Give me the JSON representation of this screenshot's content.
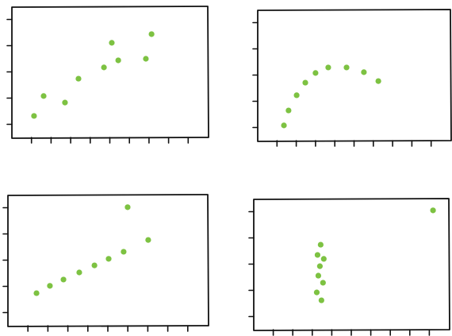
{
  "chart_data": [
    {
      "type": "scatter",
      "color": "#7dc242",
      "x": [
        1.13,
        1.62,
        2.71,
        3.4,
        4.7,
        5.1,
        5.43,
        6.84,
        7.13
      ],
      "values": [
        0.82,
        1.58,
        1.33,
        2.24,
        2.67,
        3.61,
        2.94,
        3.0,
        3.94
      ],
      "xlim": [
        0,
        10
      ],
      "ylim": [
        0,
        5
      ],
      "xticks": [
        1,
        2,
        3,
        4,
        5,
        6,
        7,
        8,
        9
      ],
      "yticks": [
        0.5,
        1.5,
        2.5,
        3.5,
        4.5
      ]
    },
    {
      "type": "scatter",
      "color": "#7dc242",
      "x": [
        1.36,
        1.6,
        2.02,
        2.47,
        3.0,
        3.66,
        4.61,
        5.51,
        6.26
      ],
      "values": [
        0.58,
        1.15,
        1.73,
        2.21,
        2.58,
        2.79,
        2.79,
        2.61,
        2.27
      ],
      "xlim": [
        0,
        10
      ],
      "ylim": [
        0,
        5
      ],
      "xticks": [
        1,
        2,
        3,
        4,
        5,
        6,
        7,
        8,
        9
      ],
      "yticks": [
        0.5,
        1.5,
        2.5,
        3.5,
        4.5
      ]
    },
    {
      "type": "scatter",
      "color": "#7dc242",
      "x": [
        1.43,
        2.1,
        2.78,
        3.57,
        4.33,
        5.04,
        5.79,
        7.02,
        5.99
      ],
      "values": [
        1.24,
        1.52,
        1.76,
        2.03,
        2.3,
        2.55,
        2.82,
        3.27,
        4.52
      ],
      "xlim": [
        0,
        10
      ],
      "ylim": [
        0,
        5
      ],
      "xticks": [
        1,
        2,
        3,
        4,
        5,
        6,
        7,
        8,
        9
      ],
      "yticks": [
        0.5,
        1.5,
        2.5,
        3.5,
        4.5
      ]
    },
    {
      "type": "scatter",
      "color": "#7dc242",
      "x": [
        3.43,
        3.27,
        3.59,
        3.39,
        3.31,
        3.55,
        3.23,
        3.47,
        9.19
      ],
      "values": [
        3.24,
        2.85,
        2.7,
        2.42,
        2.06,
        1.79,
        1.42,
        1.12,
        4.55
      ],
      "xlim": [
        0,
        10
      ],
      "ylim": [
        0,
        5
      ],
      "xticks": [
        1,
        2,
        3,
        4,
        5,
        6,
        7,
        8,
        9
      ],
      "yticks": [
        0.5,
        1.5,
        2.5,
        3.5,
        4.5
      ]
    }
  ]
}
